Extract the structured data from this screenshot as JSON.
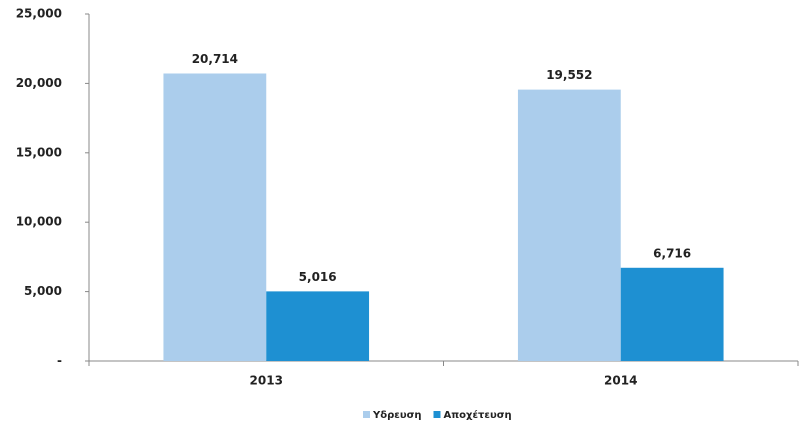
{
  "chart_data": {
    "type": "bar",
    "categories": [
      "2013",
      "2014"
    ],
    "series": [
      {
        "name": "Υδρευση",
        "color": "#abcdec",
        "values": [
          20714,
          19552
        ],
        "value_labels": [
          "20,714",
          "19,552"
        ]
      },
      {
        "name": "Αποχέτευση",
        "color": "#1e90d2",
        "values": [
          5016,
          6716
        ],
        "value_labels": [
          "5,016",
          "6,716"
        ]
      }
    ],
    "ylim": [
      0,
      25000
    ],
    "yticks": [
      {
        "value": 0,
        "label": "-"
      },
      {
        "value": 5000,
        "label": "5,000"
      },
      {
        "value": 10000,
        "label": "10,000"
      },
      {
        "value": 15000,
        "label": "15,000"
      },
      {
        "value": 20000,
        "label": "20,000"
      },
      {
        "value": 25000,
        "label": "25,000"
      }
    ],
    "legend": "bottom"
  }
}
